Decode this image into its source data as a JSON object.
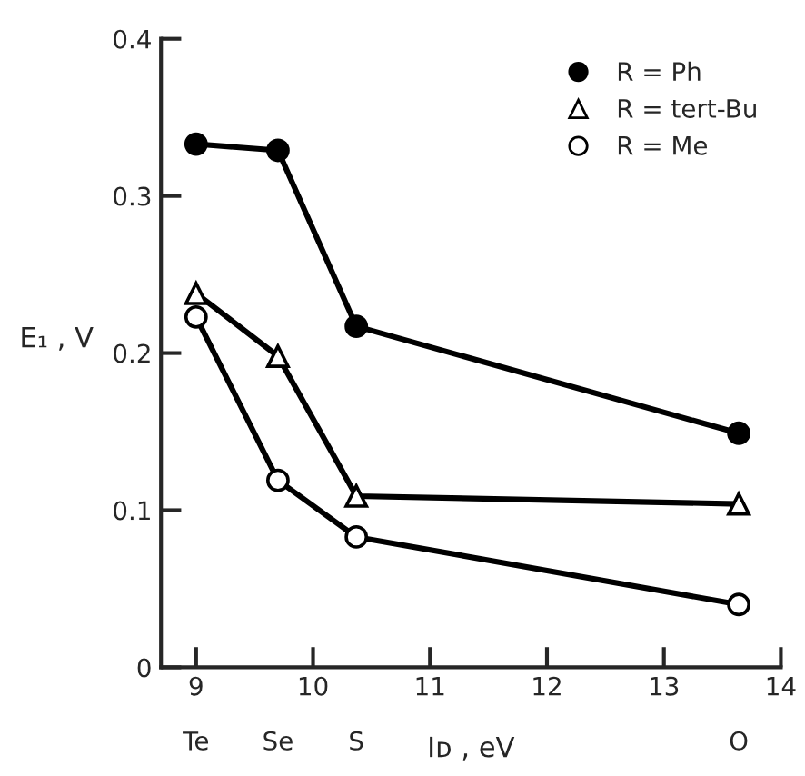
{
  "chart_data": {
    "type": "line",
    "xlabel": "Iᴅ , eV",
    "ylabel": "E₁ , V",
    "x": [
      9.0,
      9.7,
      10.37,
      13.64
    ],
    "series": [
      {
        "name": "R = Ph",
        "color": "#000000",
        "marker": "circle",
        "values": [
          0.333,
          0.329,
          0.217,
          0.149
        ]
      },
      {
        "name": "R = tert-Bu",
        "color": "#000000",
        "marker": "triangle",
        "values": [
          0.238,
          0.198,
          0.109,
          0.104
        ]
      },
      {
        "name": "R = Me",
        "color": "#000000",
        "marker": "circle",
        "values": [
          0.223,
          0.119,
          0.083,
          0.04
        ]
      }
    ],
    "xlim": [
      8.7,
      14
    ],
    "ylim": [
      0,
      0.4
    ],
    "xticks": [
      9,
      10,
      11,
      12,
      13,
      14
    ],
    "yticks": [
      0,
      0.1,
      0.2,
      0.3,
      0.4
    ],
    "annotations": [
      "Te",
      "Se",
      "S",
      "O"
    ],
    "legend": "top right",
    "grid": false,
    "line_style": "solid"
  }
}
